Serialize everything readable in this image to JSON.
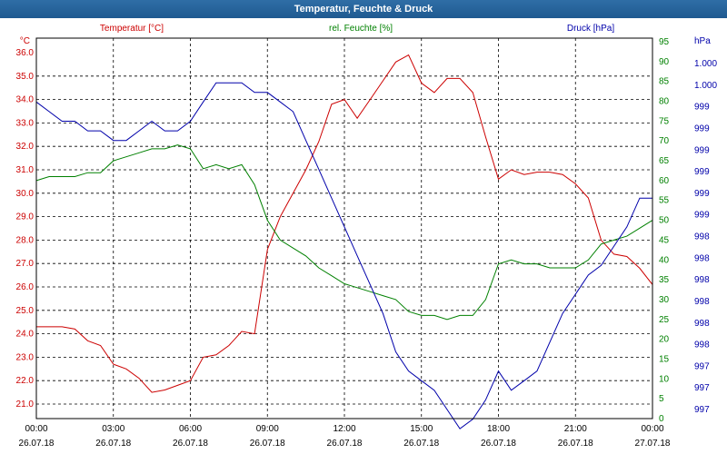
{
  "window": {
    "title": "Temperatur, Feuchte & Druck"
  },
  "colors": {
    "temperature": "#cc0000",
    "humidity": "#008000",
    "pressure": "#0000aa",
    "grid": "#000000"
  },
  "chart_data": {
    "type": "line",
    "title": "Temperatur, Feuchte & Druck",
    "axes": {
      "temperature": {
        "label": "Temperatur [°C]",
        "unit": "°C",
        "range": [
          21.0,
          36.0
        ],
        "ticks": [
          "36.0",
          "35.0",
          "34.0",
          "33.0",
          "32.0",
          "31.0",
          "30.0",
          "29.0",
          "28.0",
          "27.0",
          "26.0",
          "25.0",
          "24.0",
          "23.0",
          "22.0",
          "21.0"
        ]
      },
      "humidity": {
        "label": "rel. Feuchte [%]",
        "unit": "%",
        "range": [
          0,
          95
        ],
        "ticks": [
          "95",
          "90",
          "85",
          "80",
          "75",
          "70",
          "65",
          "60",
          "55",
          "50",
          "45",
          "40",
          "35",
          "30",
          "25",
          "20",
          "15",
          "10",
          "5",
          "0"
        ]
      },
      "pressure": {
        "label": "Druck [hPa]",
        "unit": "hPa",
        "range": [
          997.0,
          1000.6
        ],
        "ticks": [
          "1.000",
          "1.000",
          "999",
          "999",
          "999",
          "999",
          "999",
          "999",
          "998",
          "998",
          "998",
          "998",
          "998",
          "998",
          "997",
          "997",
          "997"
        ]
      },
      "x": {
        "ticks": [
          {
            "time": "00:00",
            "date": "26.07.18"
          },
          {
            "time": "03:00",
            "date": "26.07.18"
          },
          {
            "time": "06:00",
            "date": "26.07.18"
          },
          {
            "time": "09:00",
            "date": "26.07.18"
          },
          {
            "time": "12:00",
            "date": "26.07.18"
          },
          {
            "time": "15:00",
            "date": "26.07.18"
          },
          {
            "time": "18:00",
            "date": "26.07.18"
          },
          {
            "time": "21:00",
            "date": "26.07.18"
          },
          {
            "time": "00:00",
            "date": "27.07.18"
          }
        ]
      }
    },
    "grid": true,
    "x_hours": [
      0,
      0.5,
      1,
      1.5,
      2,
      2.5,
      3,
      3.5,
      4,
      4.5,
      5,
      5.5,
      6,
      6.5,
      7,
      7.5,
      8,
      8.5,
      9,
      9.5,
      10,
      10.5,
      11,
      11.5,
      12,
      12.5,
      13,
      13.5,
      14,
      14.5,
      15,
      15.5,
      16,
      16.5,
      17,
      17.5,
      18,
      18.5,
      19,
      19.5,
      20,
      20.5,
      21,
      21.5,
      22,
      22.5,
      23,
      23.5,
      24
    ],
    "series": [
      {
        "name": "Temperatur [°C]",
        "axis": "temperature",
        "values": [
          24.3,
          24.3,
          24.3,
          24.2,
          23.7,
          23.5,
          22.7,
          22.5,
          22.1,
          21.5,
          21.6,
          21.8,
          22.0,
          23.0,
          23.1,
          23.5,
          24.1,
          24.0,
          27.6,
          29.0,
          30.0,
          31.0,
          32.2,
          33.8,
          34.0,
          33.2,
          34.0,
          34.8,
          35.6,
          35.9,
          34.7,
          34.3,
          34.9,
          34.9,
          34.3,
          32.4,
          30.6,
          31.0,
          30.8,
          30.9,
          30.9,
          30.8,
          30.4,
          29.8,
          28.0,
          27.4,
          27.3,
          26.8,
          26.1
        ]
      },
      {
        "name": "rel. Feuchte [%]",
        "axis": "humidity",
        "values": [
          60,
          61,
          61,
          61,
          62,
          62,
          65,
          66,
          67,
          68,
          68,
          69,
          68,
          63,
          64,
          63,
          64,
          59,
          50,
          45,
          43,
          41,
          38,
          36,
          34,
          33,
          32,
          31,
          30,
          27,
          26,
          26,
          25,
          26,
          26,
          30,
          39,
          40,
          39,
          39,
          38,
          38,
          38,
          40,
          44,
          45,
          46,
          48,
          50
        ]
      },
      {
        "name": "Druck [hPa]",
        "axis": "pressure",
        "values": [
          1000.2,
          1000.1,
          1000.0,
          1000.0,
          999.9,
          999.9,
          999.8,
          999.8,
          999.9,
          1000.0,
          999.9,
          999.9,
          1000.0,
          1000.2,
          1000.4,
          1000.4,
          1000.4,
          1000.3,
          1000.3,
          1000.2,
          1000.1,
          999.8,
          999.5,
          999.2,
          998.9,
          998.6,
          998.3,
          998.0,
          997.6,
          997.4,
          997.3,
          997.2,
          997.0,
          996.8,
          996.9,
          997.1,
          997.4,
          997.2,
          997.3,
          997.4,
          997.7,
          998.0,
          998.2,
          998.4,
          998.5,
          998.7,
          998.9,
          999.2,
          999.2
        ]
      }
    ]
  }
}
